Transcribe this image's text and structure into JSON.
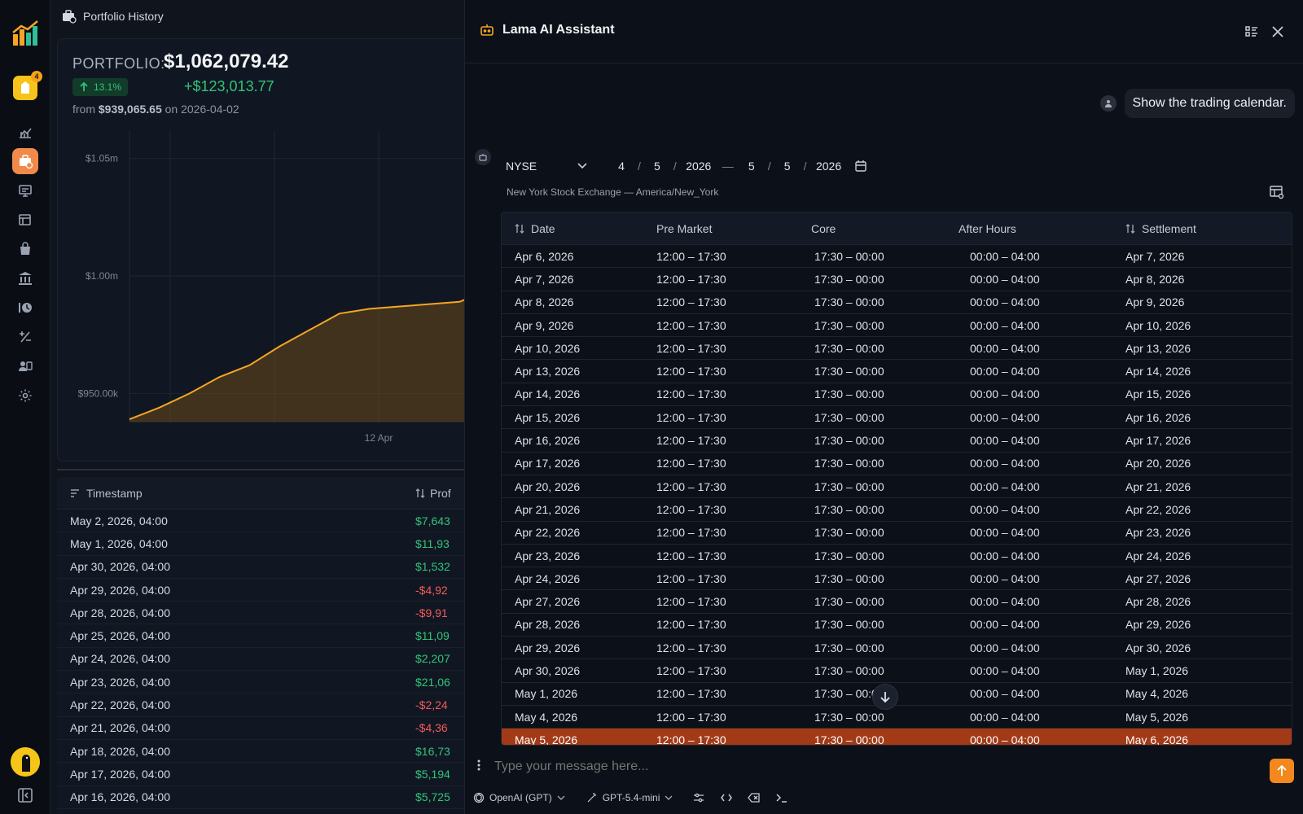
{
  "rail": {
    "notif_count": "4",
    "nav": [
      {
        "name": "analytics-icon"
      },
      {
        "name": "portfolio-icon"
      },
      {
        "name": "monitor-icon"
      },
      {
        "name": "watchlist-icon"
      },
      {
        "name": "bag-icon"
      },
      {
        "name": "bank-icon"
      },
      {
        "name": "history-icon"
      },
      {
        "name": "plus-minus-icon"
      },
      {
        "name": "users-icon"
      },
      {
        "name": "gear-icon"
      }
    ]
  },
  "main": {
    "title": "Portfolio History",
    "portfolio_label": "PORTFOLIO:",
    "portfolio_value": "$1,062,079.42",
    "change_pct": "13.1%",
    "change_abs": "+$123,013.77",
    "from_prefix": "from",
    "from_value": "$939,065.65",
    "from_on": "on",
    "from_date": "2026-04-02",
    "table": {
      "col1": "Timestamp",
      "col2": "Prof",
      "rows": [
        {
          "ts": "May 2, 2026, 04:00",
          "val": "$7,643",
          "neg": false
        },
        {
          "ts": "May 1, 2026, 04:00",
          "val": "$11,93",
          "neg": false
        },
        {
          "ts": "Apr 30, 2026, 04:00",
          "val": "$1,532",
          "neg": false
        },
        {
          "ts": "Apr 29, 2026, 04:00",
          "val": "-$4,92",
          "neg": true
        },
        {
          "ts": "Apr 28, 2026, 04:00",
          "val": "-$9,91",
          "neg": true
        },
        {
          "ts": "Apr 25, 2026, 04:00",
          "val": "$11,09",
          "neg": false
        },
        {
          "ts": "Apr 24, 2026, 04:00",
          "val": "$2,207",
          "neg": false
        },
        {
          "ts": "Apr 23, 2026, 04:00",
          "val": "$21,06",
          "neg": false
        },
        {
          "ts": "Apr 22, 2026, 04:00",
          "val": "-$2,24",
          "neg": true
        },
        {
          "ts": "Apr 21, 2026, 04:00",
          "val": "-$4,36",
          "neg": true
        },
        {
          "ts": "Apr 18, 2026, 04:00",
          "val": "$16,73",
          "neg": false
        },
        {
          "ts": "Apr 17, 2026, 04:00",
          "val": "$5,194",
          "neg": false
        },
        {
          "ts": "Apr 16, 2026, 04:00",
          "val": "$5,725",
          "neg": false
        }
      ]
    }
  },
  "chart_data": {
    "type": "area",
    "y_ticks": [
      "$1.05m",
      "$1.00m",
      "$950.00k"
    ],
    "y_tick_values": [
      1050000,
      1000000,
      950000
    ],
    "x_ticks": [
      "12 Apr"
    ],
    "ylim": [
      938000,
      1062000
    ],
    "x": [
      "2026-04-02",
      "2026-04-04",
      "2026-04-06",
      "2026-04-08",
      "2026-04-10",
      "2026-04-12",
      "2026-04-13",
      "2026-04-15",
      "2026-04-17",
      "2026-04-19",
      "2026-04-21",
      "2026-04-23",
      "2026-04-26"
    ],
    "values": [
      939000,
      944000,
      950000,
      957000,
      962000,
      970000,
      977000,
      984000,
      986000,
      987000,
      988000,
      989000,
      994000
    ],
    "color": "#f5a524"
  },
  "assistant": {
    "title": "Lama AI Assistant",
    "user_message": "Show the trading calendar.",
    "exchange": "NYSE",
    "from_month": "4",
    "from_day": "5",
    "from_year": "2026",
    "to_month": "5",
    "to_day": "5",
    "to_year": "2026",
    "date_sep": "/",
    "range_sep": "—",
    "exchange_desc": "New York Stock Exchange — America/New_York",
    "headers": {
      "date": "Date",
      "pre": "Pre Market",
      "core": "Core",
      "after": "After Hours",
      "settle": "Settlement"
    },
    "rows": [
      {
        "date": "Apr 6, 2026",
        "pre": "12:00 – 17:30",
        "core": "17:30 – 00:00",
        "after": "00:00 – 04:00",
        "settle": "Apr 7, 2026"
      },
      {
        "date": "Apr 7, 2026",
        "pre": "12:00 – 17:30",
        "core": "17:30 – 00:00",
        "after": "00:00 – 04:00",
        "settle": "Apr 8, 2026"
      },
      {
        "date": "Apr 8, 2026",
        "pre": "12:00 – 17:30",
        "core": "17:30 – 00:00",
        "after": "00:00 – 04:00",
        "settle": "Apr 9, 2026"
      },
      {
        "date": "Apr 9, 2026",
        "pre": "12:00 – 17:30",
        "core": "17:30 – 00:00",
        "after": "00:00 – 04:00",
        "settle": "Apr 10, 2026"
      },
      {
        "date": "Apr 10, 2026",
        "pre": "12:00 – 17:30",
        "core": "17:30 – 00:00",
        "after": "00:00 – 04:00",
        "settle": "Apr 13, 2026"
      },
      {
        "date": "Apr 13, 2026",
        "pre": "12:00 – 17:30",
        "core": "17:30 – 00:00",
        "after": "00:00 – 04:00",
        "settle": "Apr 14, 2026"
      },
      {
        "date": "Apr 14, 2026",
        "pre": "12:00 – 17:30",
        "core": "17:30 – 00:00",
        "after": "00:00 – 04:00",
        "settle": "Apr 15, 2026"
      },
      {
        "date": "Apr 15, 2026",
        "pre": "12:00 – 17:30",
        "core": "17:30 – 00:00",
        "after": "00:00 – 04:00",
        "settle": "Apr 16, 2026"
      },
      {
        "date": "Apr 16, 2026",
        "pre": "12:00 – 17:30",
        "core": "17:30 – 00:00",
        "after": "00:00 – 04:00",
        "settle": "Apr 17, 2026"
      },
      {
        "date": "Apr 17, 2026",
        "pre": "12:00 – 17:30",
        "core": "17:30 – 00:00",
        "after": "00:00 – 04:00",
        "settle": "Apr 20, 2026"
      },
      {
        "date": "Apr 20, 2026",
        "pre": "12:00 – 17:30",
        "core": "17:30 – 00:00",
        "after": "00:00 – 04:00",
        "settle": "Apr 21, 2026"
      },
      {
        "date": "Apr 21, 2026",
        "pre": "12:00 – 17:30",
        "core": "17:30 – 00:00",
        "after": "00:00 – 04:00",
        "settle": "Apr 22, 2026"
      },
      {
        "date": "Apr 22, 2026",
        "pre": "12:00 – 17:30",
        "core": "17:30 – 00:00",
        "after": "00:00 – 04:00",
        "settle": "Apr 23, 2026"
      },
      {
        "date": "Apr 23, 2026",
        "pre": "12:00 – 17:30",
        "core": "17:30 – 00:00",
        "after": "00:00 – 04:00",
        "settle": "Apr 24, 2026"
      },
      {
        "date": "Apr 24, 2026",
        "pre": "12:00 – 17:30",
        "core": "17:30 – 00:00",
        "after": "00:00 – 04:00",
        "settle": "Apr 27, 2026"
      },
      {
        "date": "Apr 27, 2026",
        "pre": "12:00 – 17:30",
        "core": "17:30 – 00:00",
        "after": "00:00 – 04:00",
        "settle": "Apr 28, 2026"
      },
      {
        "date": "Apr 28, 2026",
        "pre": "12:00 – 17:30",
        "core": "17:30 – 00:00",
        "after": "00:00 – 04:00",
        "settle": "Apr 29, 2026"
      },
      {
        "date": "Apr 29, 2026",
        "pre": "12:00 – 17:30",
        "core": "17:30 – 00:00",
        "after": "00:00 – 04:00",
        "settle": "Apr 30, 2026"
      },
      {
        "date": "Apr 30, 2026",
        "pre": "12:00 – 17:30",
        "core": "17:30 – 00:00",
        "after": "00:00 – 04:00",
        "settle": "May 1, 2026"
      },
      {
        "date": "May 1, 2026",
        "pre": "12:00 – 17:30",
        "core": "17:30 – 00:00",
        "after": "00:00 – 04:00",
        "settle": "May 4, 2026"
      },
      {
        "date": "May 4, 2026",
        "pre": "12:00 – 17:30",
        "core": "17:30 – 00:00",
        "after": "00:00 – 04:00",
        "settle": "May 5, 2026"
      },
      {
        "date": "May 5, 2026",
        "pre": "12:00 – 17:30",
        "core": "17:30 – 00:00",
        "after": "00:00 – 04:00",
        "settle": "May 6, 2026",
        "highlight": true
      }
    ],
    "input_placeholder": "Type your message here...",
    "provider": "OpenAI (GPT)",
    "model": "GPT-5.4-mini",
    "accent": "#f2881e",
    "highlight_color": "#a33a17"
  }
}
